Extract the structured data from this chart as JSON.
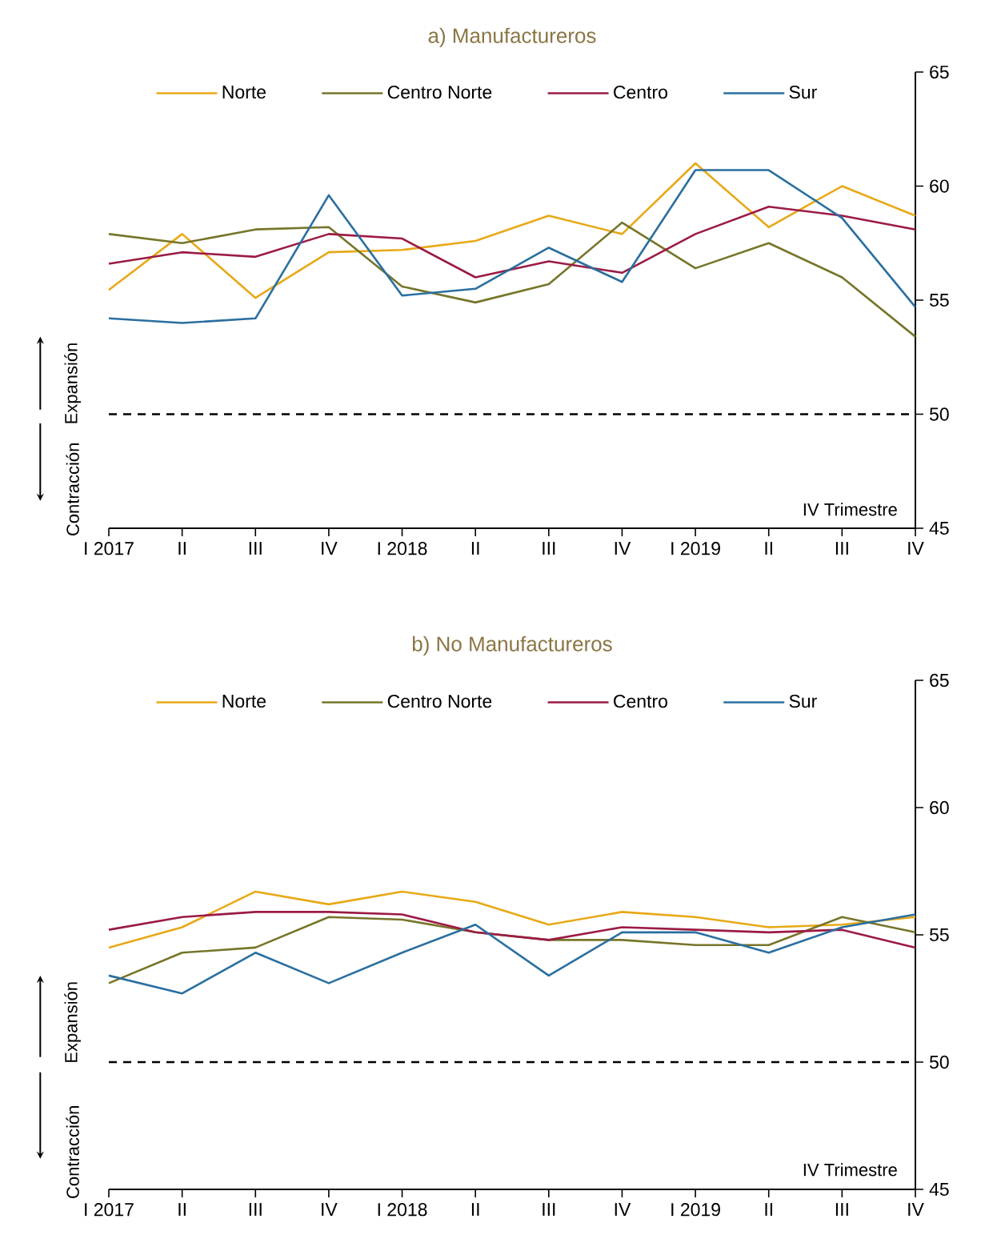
{
  "chart_data": [
    {
      "type": "line",
      "title": "a) Manufactureros",
      "categories": [
        "I 2017",
        "II",
        "III",
        "IV",
        "I 2018",
        "II",
        "III",
        "IV",
        "I 2019",
        "II",
        "III",
        "IV"
      ],
      "series": [
        {
          "name": "Norte",
          "color": "#e8a917",
          "values": [
            55.45,
            57.9,
            55.1,
            57.1,
            57.2,
            57.6,
            58.7,
            57.9,
            61.0,
            58.2,
            60.0,
            58.7
          ]
        },
        {
          "name": "Centro Norte",
          "color": "#77752a",
          "values": [
            57.9,
            57.5,
            58.1,
            58.2,
            55.6,
            54.9,
            55.7,
            58.4,
            56.4,
            57.5,
            56.0,
            53.4
          ]
        },
        {
          "name": "Centro",
          "color": "#9b1b44",
          "values": [
            56.6,
            57.1,
            56.9,
            57.9,
            57.7,
            56.0,
            56.7,
            56.2,
            57.9,
            59.1,
            58.7,
            58.1
          ]
        },
        {
          "name": "Sur",
          "color": "#2a6fa0",
          "values": [
            54.2,
            54.0,
            54.2,
            59.6,
            55.2,
            55.5,
            57.3,
            55.8,
            60.7,
            60.7,
            58.6,
            54.7
          ]
        }
      ],
      "ylim": [
        45,
        65
      ],
      "yticks": [
        45,
        50,
        55,
        60,
        65
      ],
      "legend": "top",
      "grid": false,
      "ref_lines": [
        {
          "axis": "y",
          "value": 50,
          "line_style": "dashed",
          "color": "#000000"
        }
      ],
      "annotations": [
        "IV Trimestre",
        "Expansión",
        "Contracción"
      ]
    },
    {
      "type": "line",
      "title": "b) No Manufactureros",
      "categories": [
        "I 2017",
        "II",
        "III",
        "IV",
        "I 2018",
        "II",
        "III",
        "IV",
        "I 2019",
        "II",
        "III",
        "IV"
      ],
      "series": [
        {
          "name": "Norte",
          "color": "#e8a917",
          "values": [
            54.5,
            55.3,
            56.7,
            56.2,
            56.7,
            56.3,
            55.4,
            55.9,
            55.7,
            55.3,
            55.4,
            55.7
          ]
        },
        {
          "name": "Centro Norte",
          "color": "#77752a",
          "values": [
            53.1,
            54.3,
            54.5,
            55.7,
            55.6,
            55.1,
            54.8,
            54.8,
            54.6,
            54.6,
            55.7,
            55.1
          ]
        },
        {
          "name": "Centro",
          "color": "#9b1b44",
          "values": [
            55.2,
            55.7,
            55.9,
            55.9,
            55.8,
            55.1,
            54.8,
            55.3,
            55.2,
            55.1,
            55.2,
            54.5
          ]
        },
        {
          "name": "Sur",
          "color": "#2a6fa0",
          "values": [
            53.4,
            52.7,
            54.3,
            53.1,
            54.3,
            55.4,
            53.4,
            55.1,
            55.1,
            54.3,
            55.3,
            55.8
          ]
        }
      ],
      "ylim": [
        45,
        65
      ],
      "yticks": [
        45,
        50,
        55,
        60,
        65
      ],
      "legend": "top",
      "grid": false,
      "ref_lines": [
        {
          "axis": "y",
          "value": 50,
          "line_style": "dashed",
          "color": "#000000"
        }
      ],
      "annotations": [
        "IV Trimestre",
        "Expansión",
        "Contracción"
      ]
    }
  ]
}
